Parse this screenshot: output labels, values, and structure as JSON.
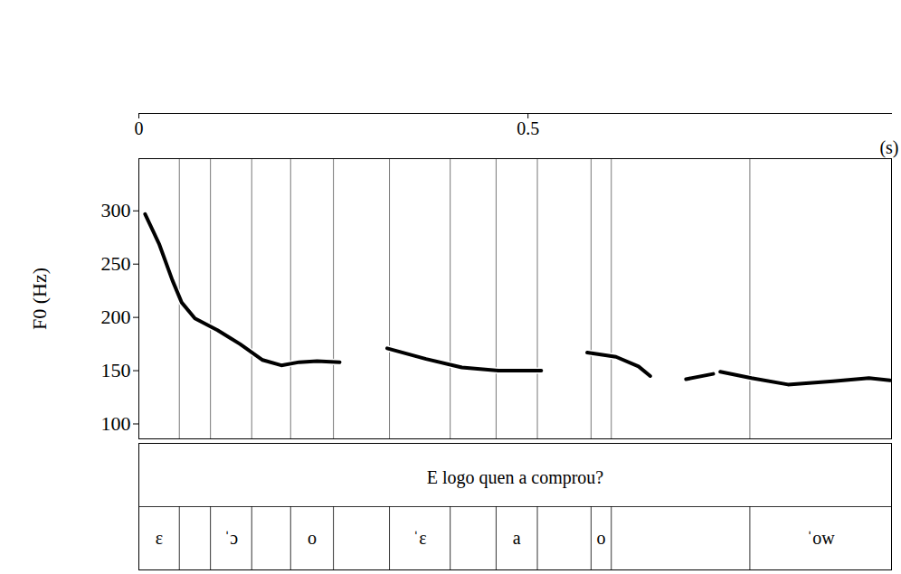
{
  "chart_data": {
    "type": "line",
    "x_label": "(s)",
    "y_label": "F0 (Hz)",
    "xlim": [
      0,
      0.967
    ],
    "xticks": [
      0,
      0.5
    ],
    "ylim": [
      86,
      349
    ],
    "yticks": [
      100,
      150,
      200,
      250,
      300
    ],
    "color": "#000000",
    "x": [
      0.008,
      0.026,
      0.043,
      0.055,
      0.072,
      0.101,
      0.13,
      0.159,
      0.183,
      0.206,
      0.229,
      0.258,
      0.29,
      0.319,
      0.369,
      0.415,
      0.462,
      0.517,
      0.54,
      0.576,
      0.613,
      0.642,
      0.657,
      0.68,
      0.703,
      0.738,
      0.742,
      0.747,
      0.787,
      0.834,
      0.892,
      0.938,
      0.965
    ],
    "values": [
      297,
      269,
      235,
      214,
      199,
      188,
      175,
      160,
      155,
      158,
      159,
      158,
      null,
      171,
      161,
      153,
      150,
      150,
      null,
      167,
      163,
      154,
      145,
      null,
      142,
      147,
      null,
      149,
      143,
      137,
      140,
      143,
      141
    ],
    "sentence": "E logo quen a comprou?",
    "boundaries": [
      0,
      0.052,
      0.092,
      0.145,
      0.195,
      0.25,
      0.322,
      0.4,
      0.459,
      0.512,
      0.581,
      0.607,
      0.785,
      0.967
    ],
    "segment_labels": [
      "ε",
      null,
      "ˈɔ",
      null,
      "o",
      null,
      "ˈε",
      null,
      "a",
      null,
      "o",
      null,
      "ˈow"
    ]
  }
}
